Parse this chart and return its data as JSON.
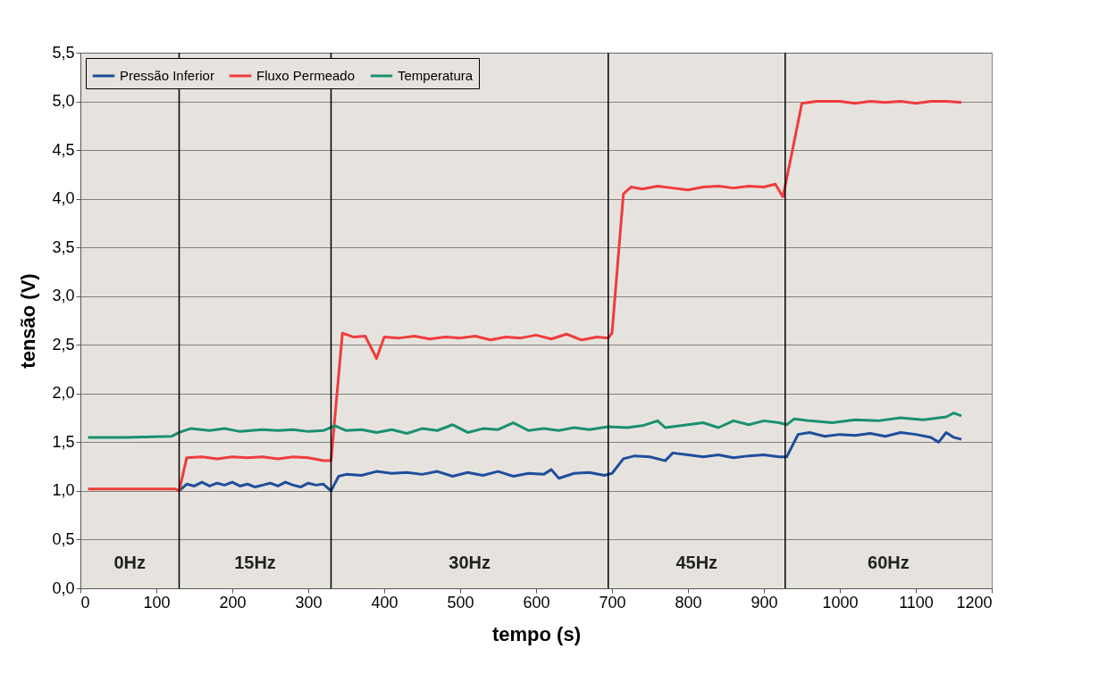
{
  "chart_data": {
    "type": "line",
    "xlabel": "tempo (s)",
    "ylabel": "tensão (V)",
    "xlim": [
      0,
      1200
    ],
    "xticks": [
      0,
      100,
      200,
      300,
      400,
      500,
      600,
      700,
      800,
      900,
      1000,
      1100,
      1200
    ],
    "ylim": [
      0,
      5.5
    ],
    "yticks": [
      {
        "value": 0,
        "label": "0,0"
      },
      {
        "value": 0.5,
        "label": "0,5"
      },
      {
        "value": 1,
        "label": "1,0"
      },
      {
        "value": 1.5,
        "label": "1,5"
      },
      {
        "value": 2,
        "label": "2,0"
      },
      {
        "value": 2.5,
        "label": "2,5"
      },
      {
        "value": 3,
        "label": "3,0"
      },
      {
        "value": 3.5,
        "label": "3,5"
      },
      {
        "value": 4,
        "label": "4,0"
      },
      {
        "value": 4.5,
        "label": "4,5"
      },
      {
        "value": 5,
        "label": "5,0"
      },
      {
        "value": 5.5,
        "label": "5,5"
      }
    ],
    "grid": "y",
    "legend": "top left",
    "marker": "none",
    "line_style": "solid",
    "series": [
      {
        "name": "Pressão Inferior",
        "color": "#1f4e9c",
        "x": [
          130,
          140,
          150,
          160,
          170,
          180,
          190,
          200,
          210,
          220,
          230,
          240,
          250,
          260,
          270,
          280,
          290,
          300,
          310,
          320,
          330,
          340,
          350,
          370,
          390,
          410,
          430,
          450,
          470,
          490,
          510,
          530,
          550,
          570,
          590,
          610,
          620,
          630,
          650,
          670,
          690,
          700,
          715,
          730,
          750,
          770,
          780,
          800,
          820,
          840,
          860,
          880,
          900,
          920,
          930,
          945,
          960,
          980,
          1000,
          1020,
          1040,
          1060,
          1080,
          1100,
          1120,
          1130,
          1140,
          1150,
          1160
        ],
        "values": [
          1.0,
          1.07,
          1.05,
          1.09,
          1.05,
          1.08,
          1.06,
          1.09,
          1.05,
          1.07,
          1.04,
          1.06,
          1.08,
          1.05,
          1.09,
          1.06,
          1.04,
          1.08,
          1.06,
          1.07,
          1.0,
          1.15,
          1.17,
          1.16,
          1.2,
          1.18,
          1.19,
          1.17,
          1.2,
          1.15,
          1.19,
          1.16,
          1.2,
          1.15,
          1.18,
          1.17,
          1.22,
          1.13,
          1.18,
          1.19,
          1.16,
          1.18,
          1.33,
          1.36,
          1.35,
          1.31,
          1.39,
          1.37,
          1.35,
          1.37,
          1.34,
          1.36,
          1.37,
          1.35,
          1.35,
          1.58,
          1.6,
          1.56,
          1.58,
          1.57,
          1.59,
          1.56,
          1.6,
          1.58,
          1.55,
          1.5,
          1.6,
          1.55,
          1.53
        ]
      },
      {
        "name": "Fluxo Permeado",
        "color": "#f03c3c",
        "x": [
          10,
          50,
          100,
          125,
          130,
          140,
          160,
          180,
          200,
          220,
          240,
          260,
          280,
          300,
          320,
          330,
          345,
          360,
          375,
          390,
          400,
          420,
          440,
          460,
          480,
          500,
          520,
          540,
          560,
          580,
          600,
          620,
          640,
          660,
          680,
          695,
          700,
          715,
          725,
          740,
          760,
          780,
          800,
          820,
          840,
          860,
          880,
          900,
          915,
          925,
          935,
          950,
          970,
          1000,
          1020,
          1040,
          1060,
          1080,
          1100,
          1120,
          1140,
          1160
        ],
        "values": [
          1.02,
          1.02,
          1.02,
          1.02,
          1.0,
          1.34,
          1.35,
          1.33,
          1.35,
          1.34,
          1.35,
          1.33,
          1.35,
          1.34,
          1.31,
          1.31,
          2.62,
          2.58,
          2.59,
          2.36,
          2.58,
          2.57,
          2.59,
          2.56,
          2.58,
          2.57,
          2.59,
          2.55,
          2.58,
          2.57,
          2.6,
          2.56,
          2.61,
          2.55,
          2.58,
          2.57,
          2.62,
          4.05,
          4.12,
          4.1,
          4.13,
          4.11,
          4.09,
          4.12,
          4.13,
          4.11,
          4.13,
          4.12,
          4.15,
          4.02,
          4.4,
          4.98,
          5.0,
          5.0,
          4.98,
          5.0,
          4.99,
          5.0,
          4.98,
          5.0,
          5.0,
          4.99
        ]
      },
      {
        "name": "Temperatura",
        "color": "#1a9070",
        "x": [
          10,
          60,
          120,
          130,
          145,
          170,
          190,
          210,
          240,
          260,
          280,
          300,
          320,
          335,
          350,
          370,
          390,
          410,
          430,
          450,
          470,
          490,
          510,
          530,
          550,
          570,
          590,
          610,
          630,
          650,
          670,
          695,
          720,
          740,
          760,
          770,
          800,
          820,
          840,
          860,
          880,
          900,
          920,
          930,
          940,
          960,
          990,
          1020,
          1050,
          1080,
          1110,
          1140,
          1150,
          1160
        ],
        "values": [
          1.55,
          1.55,
          1.56,
          1.6,
          1.64,
          1.62,
          1.64,
          1.61,
          1.63,
          1.62,
          1.63,
          1.61,
          1.62,
          1.67,
          1.62,
          1.63,
          1.6,
          1.63,
          1.59,
          1.64,
          1.62,
          1.68,
          1.6,
          1.64,
          1.63,
          1.7,
          1.62,
          1.64,
          1.62,
          1.65,
          1.63,
          1.66,
          1.65,
          1.67,
          1.72,
          1.65,
          1.68,
          1.7,
          1.65,
          1.72,
          1.68,
          1.72,
          1.7,
          1.68,
          1.74,
          1.72,
          1.7,
          1.73,
          1.72,
          1.75,
          1.73,
          1.76,
          1.8,
          1.77
        ]
      }
    ],
    "ref_lines": [
      {
        "axis": "x",
        "value": 130,
        "color": "#000000"
      },
      {
        "axis": "x",
        "value": 330,
        "color": "#000000"
      },
      {
        "axis": "x",
        "value": 695,
        "color": "#000000"
      },
      {
        "axis": "x",
        "value": 928,
        "color": "#000000"
      }
    ],
    "annotations": [
      "0Hz",
      "15Hz",
      "30Hz",
      "45Hz",
      "60Hz"
    ]
  }
}
